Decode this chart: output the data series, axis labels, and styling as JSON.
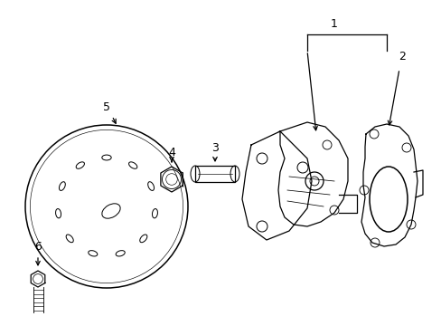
{
  "background_color": "#ffffff",
  "line_color": "#000000",
  "fig_width": 4.89,
  "fig_height": 3.6,
  "dpi": 100,
  "label_fontsize": 9,
  "lw": 0.9
}
